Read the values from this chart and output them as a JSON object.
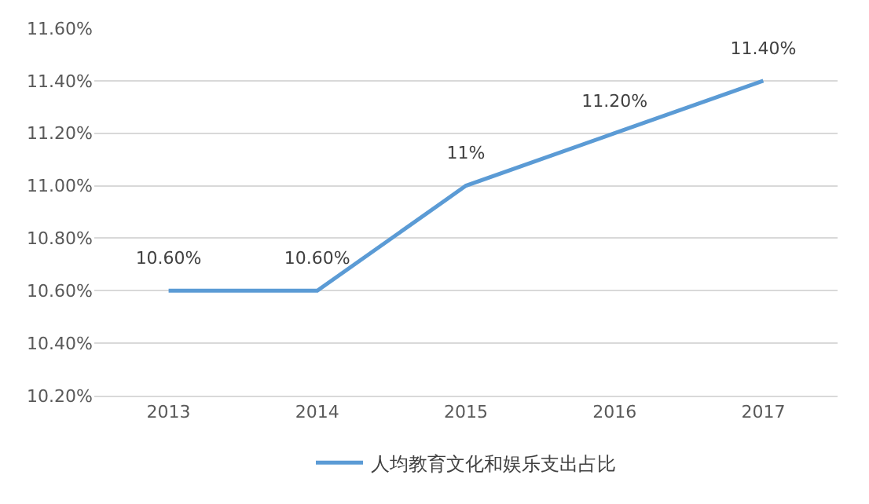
{
  "chart_data": {
    "type": "line",
    "categories": [
      "2013",
      "2014",
      "2015",
      "2016",
      "2017"
    ],
    "series": [
      {
        "name": "人均教育文化和娱乐支出占比",
        "color": "#5b9bd5",
        "values": [
          10.6,
          10.6,
          11.0,
          11.2,
          11.4
        ],
        "value_labels": [
          "10.60%",
          "10.60%",
          "11%",
          "11.20%",
          "11.40%"
        ]
      }
    ],
    "ylim": [
      10.2,
      11.6
    ],
    "yticks": [
      {
        "value": 10.2,
        "label": "10.20%"
      },
      {
        "value": 10.4,
        "label": "10.40%"
      },
      {
        "value": 10.6,
        "label": "10.60%"
      },
      {
        "value": 10.8,
        "label": "10.80%"
      },
      {
        "value": 11.0,
        "label": "11.00%"
      },
      {
        "value": 11.2,
        "label": "11.20%"
      },
      {
        "value": 11.4,
        "label": "11.40%"
      },
      {
        "value": 11.6,
        "label": "11.60%"
      }
    ],
    "grid": "y",
    "legend": "bottom",
    "marker": "none",
    "line_style": "solid"
  }
}
